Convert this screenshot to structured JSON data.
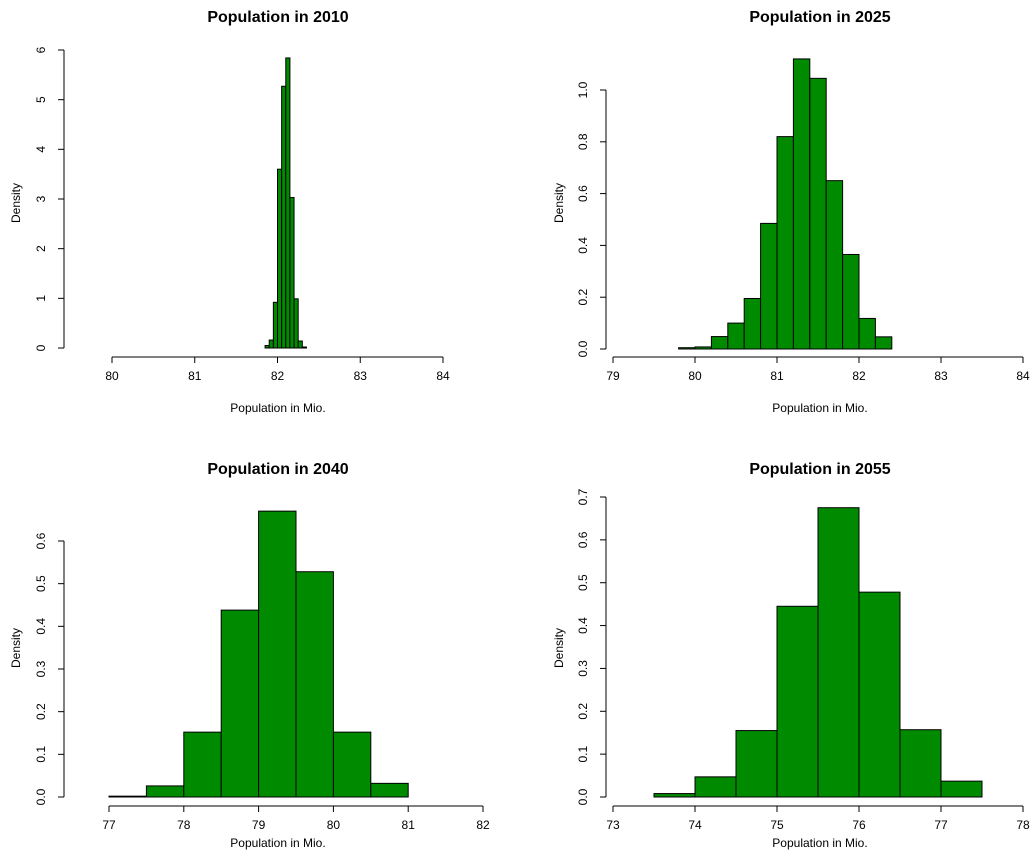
{
  "colors": {
    "bar_fill": "#008a00",
    "bar_stroke": "#000000",
    "axis": "#000000"
  },
  "chart_data": [
    {
      "type": "bar",
      "histogram": true,
      "title": "Population in 2010",
      "xlabel": "Population in Mio.",
      "ylabel": "Density",
      "x_ticks": [
        "80",
        "81",
        "82",
        "83",
        "84"
      ],
      "y_ticks": [
        "0",
        "1",
        "2",
        "3",
        "4",
        "5",
        "6"
      ],
      "xlim": [
        80,
        84
      ],
      "ylim": [
        0,
        6
      ],
      "bins": [
        {
          "x0": 81.85,
          "x1": 81.9,
          "density": 0.05
        },
        {
          "x0": 81.9,
          "x1": 81.95,
          "density": 0.16
        },
        {
          "x0": 81.95,
          "x1": 82.0,
          "density": 0.92
        },
        {
          "x0": 82.0,
          "x1": 82.05,
          "density": 3.6
        },
        {
          "x0": 82.05,
          "x1": 82.1,
          "density": 5.27
        },
        {
          "x0": 82.1,
          "x1": 82.15,
          "density": 5.84
        },
        {
          "x0": 82.15,
          "x1": 82.2,
          "density": 3.03
        },
        {
          "x0": 82.2,
          "x1": 82.25,
          "density": 0.99
        },
        {
          "x0": 82.25,
          "x1": 82.3,
          "density": 0.14
        },
        {
          "x0": 82.3,
          "x1": 82.35,
          "density": 0.02
        }
      ]
    },
    {
      "type": "bar",
      "histogram": true,
      "title": "Population in 2025",
      "xlabel": "Population in Mio.",
      "ylabel": "Density",
      "x_ticks": [
        "79",
        "80",
        "81",
        "82",
        "83",
        "84"
      ],
      "y_ticks": [
        "0.0",
        "0.2",
        "0.4",
        "0.6",
        "0.8",
        "1.0"
      ],
      "xlim": [
        79,
        84
      ],
      "ylim": [
        0,
        1.0
      ],
      "bins": [
        {
          "x0": 79.8,
          "x1": 80.0,
          "density": 0.005
        },
        {
          "x0": 80.0,
          "x1": 80.2,
          "density": 0.008
        },
        {
          "x0": 80.2,
          "x1": 80.4,
          "density": 0.048
        },
        {
          "x0": 80.4,
          "x1": 80.6,
          "density": 0.1
        },
        {
          "x0": 80.6,
          "x1": 80.8,
          "density": 0.195
        },
        {
          "x0": 80.8,
          "x1": 81.0,
          "density": 0.485
        },
        {
          "x0": 81.0,
          "x1": 81.2,
          "density": 0.82
        },
        {
          "x0": 81.2,
          "x1": 81.4,
          "density": 1.12
        },
        {
          "x0": 81.4,
          "x1": 81.6,
          "density": 1.045
        },
        {
          "x0": 81.6,
          "x1": 81.8,
          "density": 0.65
        },
        {
          "x0": 81.8,
          "x1": 82.0,
          "density": 0.365
        },
        {
          "x0": 82.0,
          "x1": 82.2,
          "density": 0.118
        },
        {
          "x0": 82.2,
          "x1": 82.4,
          "density": 0.047
        }
      ]
    },
    {
      "type": "bar",
      "histogram": true,
      "title": "Population in 2040",
      "xlabel": "Population in Mio.",
      "ylabel": "Density",
      "x_ticks": [
        "77",
        "78",
        "79",
        "80",
        "81",
        "82"
      ],
      "y_ticks": [
        "0.0",
        "0.1",
        "0.2",
        "0.3",
        "0.4",
        "0.5",
        "0.6"
      ],
      "xlim": [
        77,
        82
      ],
      "ylim": [
        0,
        0.6
      ],
      "bins": [
        {
          "x0": 77.0,
          "x1": 77.5,
          "density": 0.002
        },
        {
          "x0": 77.5,
          "x1": 78.0,
          "density": 0.026
        },
        {
          "x0": 78.0,
          "x1": 78.5,
          "density": 0.152
        },
        {
          "x0": 78.5,
          "x1": 79.0,
          "density": 0.438
        },
        {
          "x0": 79.0,
          "x1": 79.5,
          "density": 0.67
        },
        {
          "x0": 79.5,
          "x1": 80.0,
          "density": 0.528
        },
        {
          "x0": 80.0,
          "x1": 80.5,
          "density": 0.152
        },
        {
          "x0": 80.5,
          "x1": 81.0,
          "density": 0.032
        }
      ]
    },
    {
      "type": "bar",
      "histogram": true,
      "title": "Population in 2055",
      "xlabel": "Population in Mio.",
      "ylabel": "Density",
      "x_ticks": [
        "73",
        "74",
        "75",
        "76",
        "77",
        "78"
      ],
      "y_ticks": [
        "0.0",
        "0.1",
        "0.2",
        "0.3",
        "0.4",
        "0.5",
        "0.6",
        "0.7"
      ],
      "xlim": [
        73,
        78
      ],
      "ylim": [
        0,
        0.7
      ],
      "bins": [
        {
          "x0": 73.5,
          "x1": 74.0,
          "density": 0.008
        },
        {
          "x0": 74.0,
          "x1": 74.5,
          "density": 0.047
        },
        {
          "x0": 74.5,
          "x1": 75.0,
          "density": 0.155
        },
        {
          "x0": 75.0,
          "x1": 75.5,
          "density": 0.445
        },
        {
          "x0": 75.5,
          "x1": 76.0,
          "density": 0.675
        },
        {
          "x0": 76.0,
          "x1": 76.5,
          "density": 0.478
        },
        {
          "x0": 76.5,
          "x1": 77.0,
          "density": 0.157
        },
        {
          "x0": 77.0,
          "x1": 77.5,
          "density": 0.037
        }
      ]
    }
  ]
}
